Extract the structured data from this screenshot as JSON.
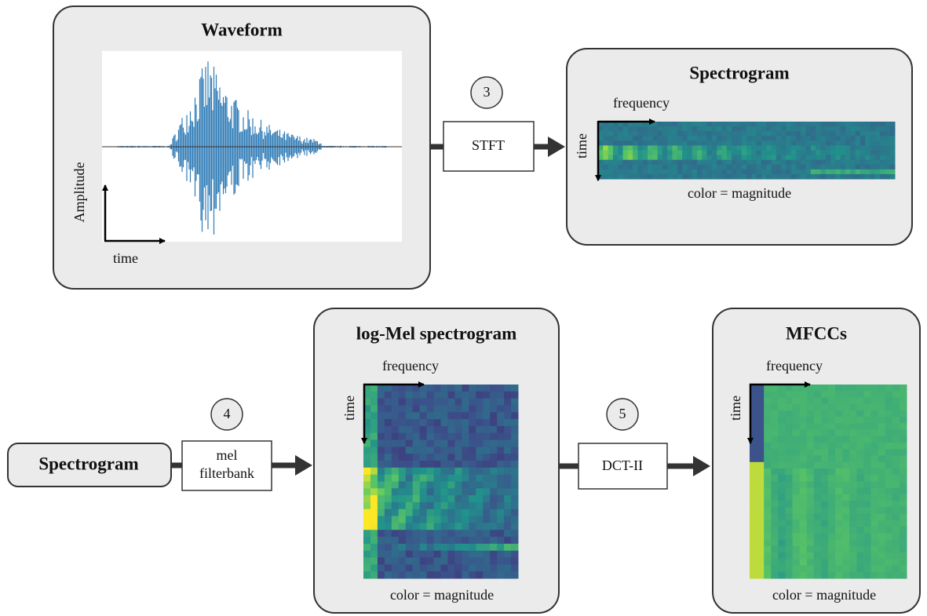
{
  "nodes": [
    {
      "title": "Waveform",
      "x_label": "time",
      "y_label": "Amplitude"
    },
    {
      "title": "Spectrogram",
      "x_label": "frequency",
      "y_label": "time",
      "caption": "color = magnitude"
    },
    {
      "title": "Spectrogram"
    },
    {
      "title": "log-Mel spectrogram",
      "x_label": "frequency",
      "y_label": "time",
      "caption": "color = magnitude"
    },
    {
      "title": "MFCCs",
      "x_label": "frequency",
      "y_label": "time",
      "caption": "color = magnitude"
    }
  ],
  "steps": [
    {
      "number": "3",
      "lines": [
        "STFT"
      ]
    },
    {
      "number": "4",
      "lines": [
        "mel",
        "filterbank"
      ]
    },
    {
      "number": "5",
      "lines": [
        "DCT-II"
      ]
    }
  ]
}
